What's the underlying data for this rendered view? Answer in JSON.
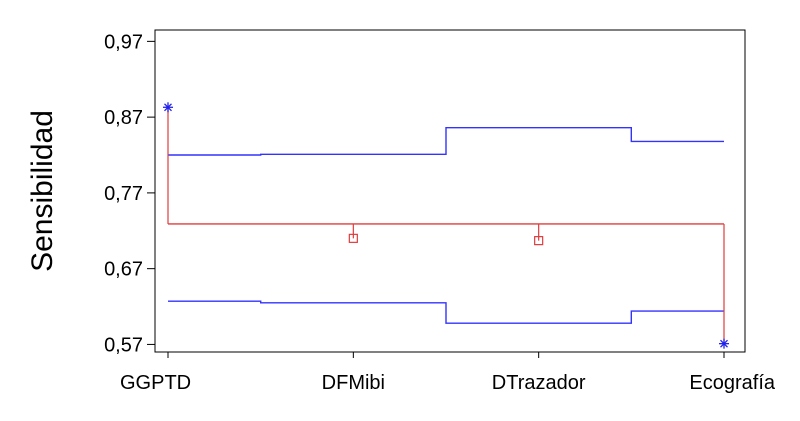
{
  "chart_data": {
    "type": "line",
    "title": "",
    "xlabel": "",
    "ylabel": "Sensibilidad",
    "categories": [
      "GGPTD",
      "DFMibi",
      "DTrazador",
      "Ecografía"
    ],
    "ylim": [
      0.56,
      0.985
    ],
    "yticks": [
      0.57,
      0.67,
      0.77,
      0.87,
      0.97
    ],
    "ytick_labels": [
      "0,57",
      "0,67",
      "0,77",
      "0,87",
      "0,97"
    ],
    "center_line": 0.729,
    "upper_limit": [
      0.82,
      0.821,
      0.856,
      0.838
    ],
    "lower_limit": [
      0.627,
      0.625,
      0.598,
      0.614
    ],
    "points": [
      0.883,
      0.71,
      0.707,
      0.571
    ],
    "point_markers": [
      "asterisk",
      "square",
      "square",
      "asterisk"
    ],
    "colors": {
      "limits": "#3333ff",
      "center": "#e03c3c",
      "out_of_limits": "#2222ee",
      "in_limits": "#e03c3c",
      "axis": "#000000"
    },
    "grid": false,
    "legend": "none"
  }
}
